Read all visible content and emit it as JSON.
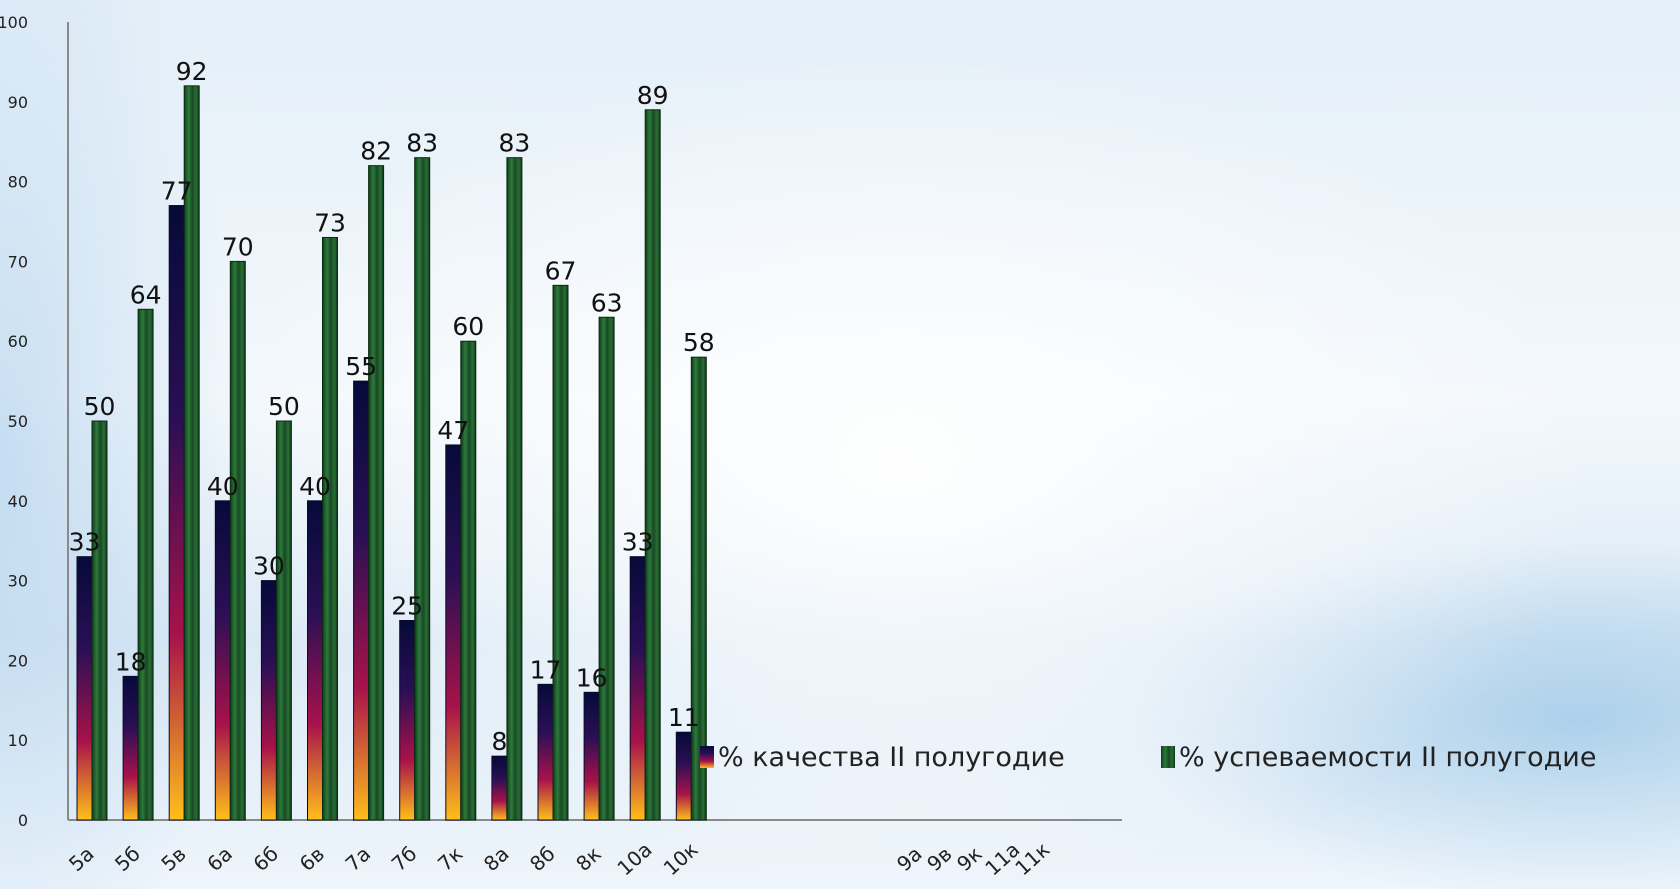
{
  "chart_data": {
    "type": "bar",
    "categories": [
      "5а",
      "5б",
      "5в",
      "6а",
      "6б",
      "6в",
      "7а",
      "7б",
      "7к",
      "8а",
      "8б",
      "8к",
      "10а",
      "10к",
      "9а",
      "9в",
      "9к",
      "11а",
      "11к"
    ],
    "series": [
      {
        "name": "% качества II полугодие",
        "values": [
          33,
          18,
          77,
          40,
          30,
          40,
          55,
          25,
          47,
          8,
          17,
          16,
          33,
          11,
          null,
          null,
          null,
          null,
          null
        ],
        "color": "#8a1040"
      },
      {
        "name": "% успеваемости II полугодие",
        "values": [
          50,
          64,
          92,
          70,
          50,
          73,
          82,
          83,
          60,
          83,
          67,
          63,
          89,
          58,
          null,
          null,
          null,
          null,
          null
        ],
        "color": "#1d5a2a"
      }
    ],
    "ylim": [
      0,
      100
    ],
    "yticks": [
      "0",
      "10",
      "20",
      "30",
      "40",
      "50",
      "60",
      "70",
      "80",
      "90",
      "100"
    ],
    "data_labels": {
      "quality": [
        "33",
        "18",
        "77",
        "40",
        "30",
        "40",
        "55",
        "25",
        "47",
        "8",
        "17",
        "16",
        "33",
        "11"
      ],
      "success": [
        "50",
        "64",
        "92",
        "70",
        "50",
        "73",
        "82",
        "83",
        "60",
        "83",
        "67",
        "63",
        "89",
        "58"
      ]
    },
    "legend": {
      "position": "right",
      "items": [
        "% качества II полугодие",
        "% успеваемости II полугодие"
      ]
    },
    "grid": false
  }
}
